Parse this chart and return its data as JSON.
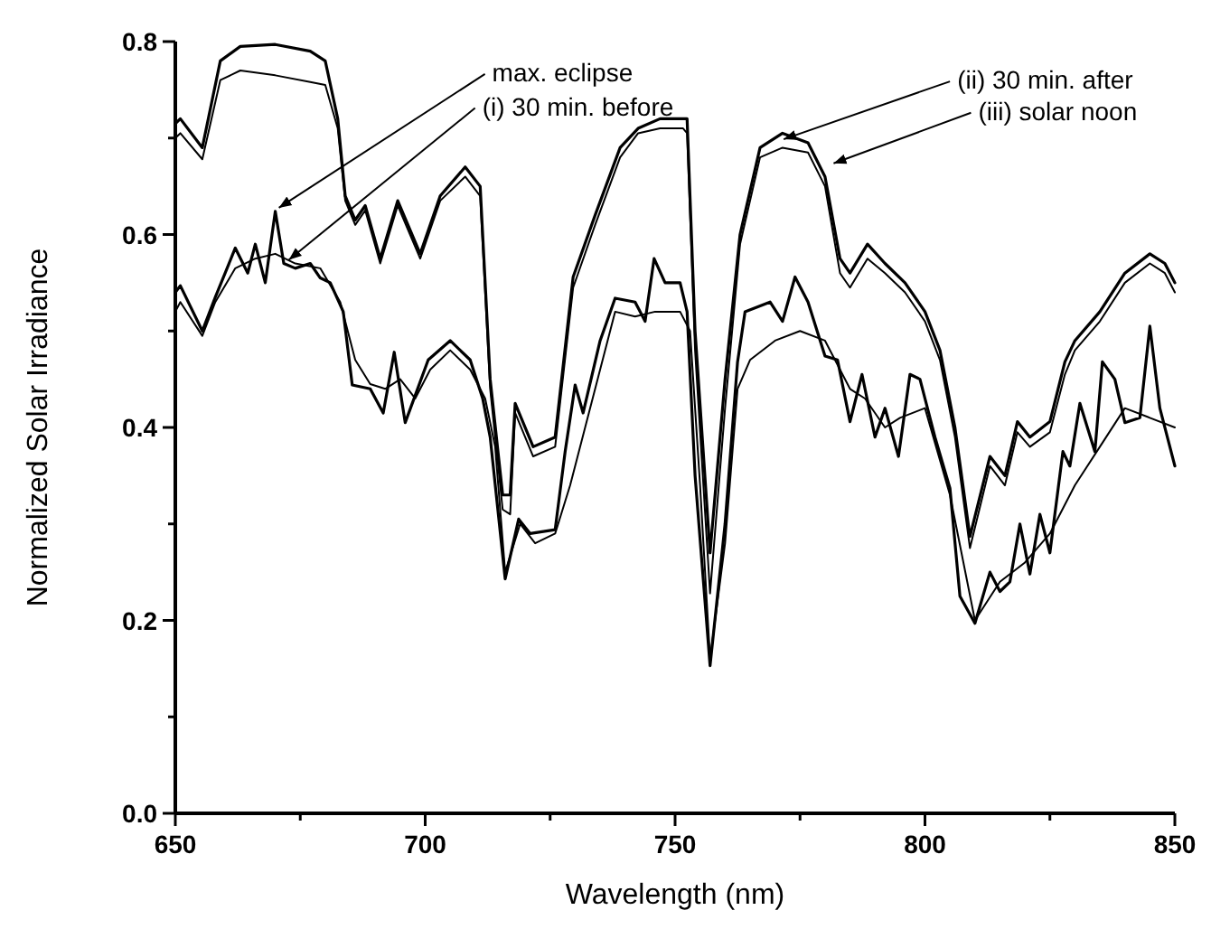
{
  "chart_data": {
    "type": "line",
    "xlabel": "Wavelength (nm)",
    "ylabel": "Normalized Solar Irradiance",
    "xlim": [
      650,
      850
    ],
    "xticks": [
      650,
      {
        "value": 675,
        "label": null
      },
      700,
      {
        "value": 725,
        "label": null
      },
      750,
      {
        "value": 775,
        "label": null
      },
      800,
      {
        "value": 825,
        "label": null
      },
      850
    ],
    "ylim": [
      0,
      0.8
    ],
    "yticks": [
      {
        "value": 0,
        "label": "0.0"
      },
      {
        "value": 0.1,
        "label": null
      },
      0.2,
      {
        "value": 0.3,
        "label": null
      },
      0.4,
      {
        "value": 0.5,
        "label": null
      },
      0.6,
      {
        "value": 0.7,
        "label": null
      },
      0.8
    ],
    "grid": false,
    "marker": "none",
    "line_style": "solid",
    "series": [
      {
        "color": "#000000",
        "x": [
          650,
          651,
          655.4,
          659,
          663,
          670,
          677,
          680,
          682.5,
          684,
          686,
          688,
          691,
          694.5,
          699,
          703,
          708,
          711,
          713,
          715.5,
          717,
          718,
          721.6,
          726,
          729.6,
          734,
          739,
          742.6,
          747,
          751.6,
          752.4,
          754,
          757,
          760,
          763,
          767,
          771.5,
          776.6,
          780,
          783,
          785,
          788.5,
          792,
          796,
          800,
          803,
          806,
          809,
          813,
          816,
          818.5,
          821,
          825,
          828,
          830,
          835,
          840,
          845,
          848,
          850
        ],
        "values": [
          0.715,
          0.72,
          0.69,
          0.78,
          0.795,
          0.797,
          0.79,
          0.78,
          0.72,
          0.64,
          0.615,
          0.63,
          0.575,
          0.635,
          0.58,
          0.64,
          0.67,
          0.65,
          0.45,
          0.33,
          0.33,
          0.425,
          0.38,
          0.39,
          0.556,
          0.62,
          0.69,
          0.71,
          0.72,
          0.72,
          0.72,
          0.5,
          0.27,
          0.45,
          0.6,
          0.69,
          0.705,
          0.695,
          0.66,
          0.575,
          0.56,
          0.59,
          0.57,
          0.55,
          0.52,
          0.48,
          0.4,
          0.287,
          0.37,
          0.35,
          0.406,
          0.39,
          0.406,
          0.468,
          0.49,
          0.52,
          0.56,
          0.58,
          0.57,
          0.55
        ]
      },
      {
        "color": "#000000",
        "x": [
          650,
          651,
          655.4,
          659,
          663,
          670,
          677,
          680,
          682.5,
          684,
          686,
          688,
          691,
          694.5,
          699,
          703,
          708,
          711,
          713,
          715.5,
          717,
          718,
          721.6,
          726,
          729.6,
          734,
          739,
          742.6,
          747,
          751.6,
          752.4,
          754,
          757,
          760,
          763,
          767,
          771.5,
          776.6,
          780,
          783,
          785,
          788.5,
          792,
          796,
          800,
          803,
          806,
          809,
          813,
          816,
          818.5,
          821,
          825,
          828,
          830,
          835,
          840,
          845,
          848,
          850
        ],
        "values": [
          0.7,
          0.705,
          0.678,
          0.76,
          0.77,
          0.765,
          0.758,
          0.755,
          0.71,
          0.635,
          0.61,
          0.625,
          0.57,
          0.63,
          0.575,
          0.635,
          0.66,
          0.64,
          0.44,
          0.315,
          0.31,
          0.415,
          0.37,
          0.38,
          0.545,
          0.61,
          0.68,
          0.705,
          0.71,
          0.71,
          0.705,
          0.48,
          0.228,
          0.42,
          0.59,
          0.68,
          0.69,
          0.685,
          0.65,
          0.56,
          0.545,
          0.575,
          0.56,
          0.54,
          0.51,
          0.47,
          0.39,
          0.275,
          0.36,
          0.34,
          0.395,
          0.38,
          0.395,
          0.455,
          0.48,
          0.51,
          0.55,
          0.57,
          0.56,
          0.54
        ]
      },
      {
        "color": "#000000",
        "x": [
          650,
          651,
          655.4,
          658,
          662,
          664.5,
          666,
          668,
          670,
          671.7,
          674,
          677,
          679,
          681,
          683.6,
          685.4,
          689,
          691.6,
          693.8,
          696,
          700.6,
          705,
          709,
          711.5,
          713,
          716,
          718.7,
          721,
          726,
          728,
          730,
          731.6,
          735,
          738,
          742,
          744,
          745.8,
          748,
          751,
          752.4,
          754,
          757,
          760,
          762.5,
          764,
          769,
          771.5,
          774,
          776.6,
          780,
          782.5,
          785,
          787.4,
          790,
          792,
          794.7,
          797,
          799,
          802,
          805,
          807,
          810,
          813,
          815,
          817,
          819,
          821,
          823,
          825,
          827.6,
          829,
          831,
          834,
          835.5,
          838,
          840,
          843,
          845,
          847,
          850
        ],
        "values": [
          0.54,
          0.547,
          0.5,
          0.535,
          0.586,
          0.56,
          0.59,
          0.55,
          0.624,
          0.57,
          0.565,
          0.57,
          0.555,
          0.55,
          0.52,
          0.444,
          0.44,
          0.415,
          0.478,
          0.405,
          0.47,
          0.49,
          0.47,
          0.43,
          0.39,
          0.243,
          0.305,
          0.29,
          0.294,
          0.375,
          0.444,
          0.415,
          0.49,
          0.534,
          0.53,
          0.51,
          0.575,
          0.55,
          0.55,
          0.52,
          0.35,
          0.153,
          0.3,
          0.468,
          0.52,
          0.53,
          0.51,
          0.556,
          0.53,
          0.474,
          0.47,
          0.406,
          0.455,
          0.39,
          0.42,
          0.37,
          0.455,
          0.45,
          0.39,
          0.337,
          0.225,
          0.197,
          0.25,
          0.23,
          0.24,
          0.3,
          0.248,
          0.31,
          0.27,
          0.375,
          0.36,
          0.425,
          0.375,
          0.468,
          0.45,
          0.405,
          0.41,
          0.505,
          0.42,
          0.36
        ]
      },
      {
        "color": "#000000",
        "x": [
          650,
          651,
          655.4,
          658,
          662,
          666,
          670,
          674,
          679,
          683,
          686,
          689,
          692,
          695,
          698,
          701,
          705,
          709,
          712,
          714,
          716,
          719,
          722,
          726,
          729,
          732,
          735,
          738,
          742,
          746,
          751,
          753,
          755,
          757,
          760,
          762.5,
          765,
          770,
          775,
          780,
          785,
          788,
          792,
          795,
          800,
          805,
          810,
          815,
          820,
          825,
          830,
          835,
          840,
          845,
          850
        ],
        "values": [
          0.52,
          0.53,
          0.495,
          0.53,
          0.565,
          0.575,
          0.58,
          0.57,
          0.565,
          0.53,
          0.47,
          0.445,
          0.44,
          0.45,
          0.43,
          0.46,
          0.48,
          0.46,
          0.43,
          0.38,
          0.25,
          0.3,
          0.28,
          0.29,
          0.34,
          0.4,
          0.46,
          0.52,
          0.515,
          0.52,
          0.52,
          0.5,
          0.34,
          0.16,
          0.28,
          0.44,
          0.47,
          0.49,
          0.5,
          0.49,
          0.44,
          0.43,
          0.4,
          0.41,
          0.42,
          0.33,
          0.2,
          0.24,
          0.26,
          0.29,
          0.34,
          0.38,
          0.42,
          0.41,
          0.4
        ]
      }
    ],
    "annotations": [
      {
        "text": "max. eclipse",
        "x": 670,
        "y": 0.624
      },
      {
        "text": "(i) 30 min. before",
        "x": 672,
        "y": 0.57
      },
      {
        "text": "(ii) 30 min. after",
        "x": 771,
        "y": 0.695
      },
      {
        "text": "(iii) solar noon",
        "x": 781,
        "y": 0.67
      }
    ]
  }
}
